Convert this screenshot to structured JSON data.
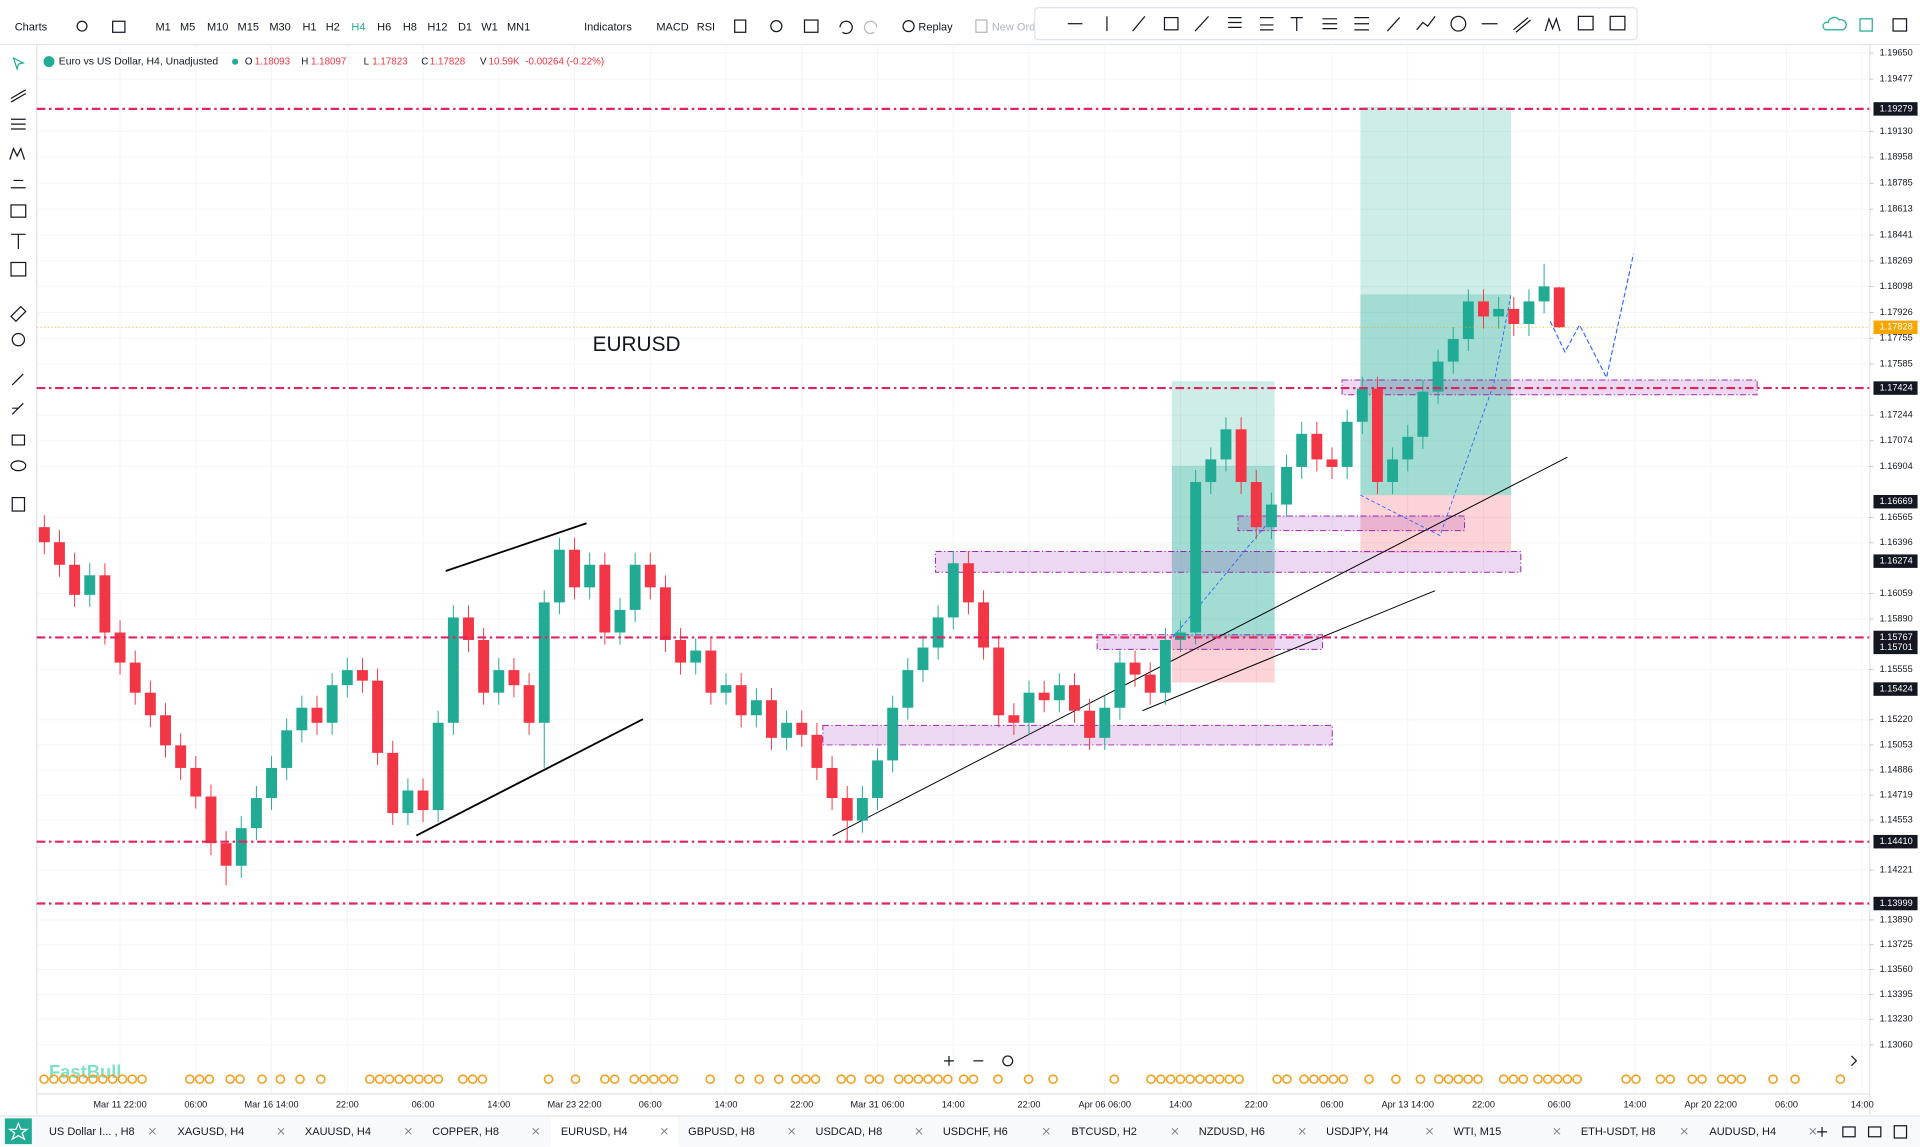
{
  "toolbar": {
    "chart_menu": "Charts",
    "timeframes": [
      "M1",
      "M5",
      "M10",
      "M15",
      "M30",
      "H1",
      "H2",
      "H4",
      "H6",
      "H8",
      "H12",
      "D1",
      "W1",
      "MN1"
    ],
    "indicators": "Indicators",
    "studies": [
      "MACD",
      "RSI"
    ],
    "replay": "Replay",
    "new_order": "New Ord"
  },
  "legend": {
    "name": "Euro vs US Dollar, H4, Unadjusted",
    "o": "O",
    "h": "H",
    "l": "L",
    "c": "C",
    "v": "V",
    "volume": "10.59K",
    "change": "-0.00264 (-0.22%)"
  },
  "watermark": "FastBull",
  "tabs": [
    "US Dollar I... , H8",
    "XAGUSD, H4",
    "XAUUSD, H4",
    "COPPER, H8",
    "EURUSD, H4",
    "GBPUSD, H8",
    "USDCAD, H8",
    "USDCHF, H6",
    "BTCUSD, H2",
    "NZDUSD, H6",
    "USDJPY, H4",
    "WTI, M15",
    "ETH-USDT, H8",
    "AUDUSD, H4"
  ],
  "chart_data": {
    "type": "candlestick",
    "annotation": "EURUSD",
    "up_color": "#22ab94",
    "down_color": "#f23645",
    "level_color": "#e0245e",
    "grid": true,
    "categories": [
      null,
      null,
      null,
      null,
      null,
      "Mar 11 22:00",
      null,
      null,
      null,
      null,
      "06:00",
      null,
      null,
      null,
      null,
      "Mar 16 14:00",
      null,
      null,
      null,
      null,
      "22:00",
      null,
      null,
      null,
      null,
      "06:00",
      null,
      null,
      null,
      null,
      "14:00",
      null,
      null,
      null,
      null,
      "Mar 23 22:00",
      null,
      null,
      null,
      null,
      "06:00",
      null,
      null,
      null,
      null,
      "14:00",
      null,
      null,
      null,
      null,
      "22:00",
      null,
      null,
      null,
      null,
      "Mar 31 06:00",
      null,
      null,
      null,
      null,
      "14:00",
      null,
      null,
      null,
      null,
      "22:00",
      null,
      null,
      null,
      null,
      "Apr 06 06:00",
      null,
      null,
      null,
      null,
      "14:00",
      null,
      null,
      null,
      null,
      "22:00",
      null,
      null,
      null,
      null,
      "06:00",
      null,
      null,
      null,
      null,
      "Apr 13 14:00",
      null,
      null,
      null,
      null,
      "22:00",
      null,
      null,
      null,
      null,
      "06:00",
      null,
      null,
      null,
      null,
      "14:00",
      null,
      null,
      null,
      null,
      "Apr 20 22:00",
      null,
      null,
      null,
      null,
      "06:00",
      null,
      null,
      null,
      null,
      "14:00"
    ],
    "open": [
      1.165,
      1.164,
      1.1625,
      1.1605,
      1.1618,
      1.158,
      1.156,
      1.154,
      1.1525,
      1.1505,
      1.149,
      1.1471,
      1.144,
      1.1425,
      1.145,
      1.147,
      1.149,
      1.1515,
      1.153,
      1.152,
      1.1545,
      1.1555,
      1.1548,
      1.15,
      1.146,
      1.1475,
      1.1462,
      1.152,
      1.159,
      1.1575,
      1.154,
      1.1555,
      1.1545,
      1.152,
      1.16,
      1.1635,
      1.161,
      1.1625,
      1.158,
      1.1595,
      1.1625,
      1.161,
      1.1575,
      1.156,
      1.1568,
      1.154,
      1.1545,
      1.1525,
      1.1535,
      1.151,
      1.152,
      1.1512,
      1.149,
      1.147,
      1.1455,
      1.147,
      1.1495,
      1.153,
      1.1555,
      1.157,
      1.159,
      1.1626,
      1.16,
      1.157,
      1.1525,
      1.152,
      1.154,
      1.1535,
      1.1545,
      1.1528,
      1.151,
      1.153,
      1.156,
      1.1552,
      1.154,
      1.1575,
      1.158,
      1.168,
      1.1695,
      1.1715,
      1.168,
      1.165,
      1.1665,
      1.169,
      1.1712,
      1.1695,
      1.169,
      1.172,
      1.1742,
      1.168,
      1.1695,
      1.171,
      1.174,
      1.176,
      1.1775,
      1.18,
      1.179,
      1.1795,
      1.1785,
      1.18,
      1.18093,
      null,
      null,
      null,
      null,
      null,
      null,
      null,
      null,
      null,
      null,
      null,
      null,
      null,
      null,
      null,
      null,
      null,
      null,
      null,
      null
    ],
    "high": [
      1.1658,
      1.1648,
      1.1633,
      1.1626,
      1.1626,
      1.1588,
      1.1568,
      1.1548,
      1.1533,
      1.1513,
      1.1498,
      1.1479,
      1.1448,
      1.1458,
      1.1478,
      1.1498,
      1.1523,
      1.1538,
      1.1538,
      1.1553,
      1.1563,
      1.1563,
      1.1556,
      1.1508,
      1.1483,
      1.1483,
      1.1528,
      1.1598,
      1.1598,
      1.1583,
      1.1563,
      1.1563,
      1.1553,
      1.1608,
      1.1643,
      1.1643,
      1.1633,
      1.1633,
      1.1603,
      1.1633,
      1.1633,
      1.1618,
      1.1583,
      1.1576,
      1.1576,
      1.1553,
      1.1553,
      1.1543,
      1.1543,
      1.1528,
      1.1528,
      1.152,
      1.1498,
      1.1478,
      1.1478,
      1.1503,
      1.1538,
      1.1563,
      1.1578,
      1.1598,
      1.1634,
      1.1634,
      1.1608,
      1.1578,
      1.1533,
      1.1548,
      1.1548,
      1.1553,
      1.1553,
      1.1536,
      1.1538,
      1.1568,
      1.1568,
      1.156,
      1.1583,
      1.1588,
      1.1688,
      1.1703,
      1.1723,
      1.1723,
      1.1688,
      1.1673,
      1.1698,
      1.172,
      1.172,
      1.1703,
      1.1728,
      1.175,
      1.175,
      1.1703,
      1.1718,
      1.1748,
      1.1768,
      1.1783,
      1.1808,
      1.1808,
      1.1803,
      1.1803,
      1.1808,
      1.1825,
      1.18097,
      null,
      null,
      null,
      null,
      null,
      null,
      null,
      null,
      null,
      null,
      null,
      null,
      null,
      null,
      null,
      null,
      null,
      null,
      null,
      null
    ],
    "low": [
      1.1632,
      1.1617,
      1.1597,
      1.1597,
      1.1572,
      1.1552,
      1.1532,
      1.1517,
      1.1497,
      1.1482,
      1.1463,
      1.1432,
      1.1412,
      1.1417,
      1.1442,
      1.1462,
      1.1482,
      1.1507,
      1.1512,
      1.1512,
      1.1537,
      1.154,
      1.1492,
      1.1452,
      1.1452,
      1.1454,
      1.1454,
      1.1512,
      1.1567,
      1.1532,
      1.1532,
      1.1537,
      1.1512,
      1.149,
      1.1592,
      1.1602,
      1.1602,
      1.1572,
      1.1572,
      1.1587,
      1.1602,
      1.1567,
      1.1552,
      1.1552,
      1.1532,
      1.1532,
      1.1517,
      1.1517,
      1.1502,
      1.1502,
      1.1504,
      1.1482,
      1.1462,
      1.1441,
      1.1447,
      1.1462,
      1.1487,
      1.1522,
      1.1547,
      1.1562,
      1.1582,
      1.1592,
      1.1562,
      1.1517,
      1.1512,
      1.1512,
      1.1527,
      1.1527,
      1.152,
      1.1502,
      1.1502,
      1.1522,
      1.1544,
      1.1532,
      1.1532,
      1.1567,
      1.1572,
      1.1672,
      1.1687,
      1.1672,
      1.1642,
      1.1642,
      1.1657,
      1.1682,
      1.1687,
      1.1682,
      1.1682,
      1.1712,
      1.1672,
      1.1672,
      1.1687,
      1.1702,
      1.1732,
      1.1752,
      1.1767,
      1.1782,
      1.1782,
      1.1777,
      1.1777,
      1.1792,
      1.17823,
      null,
      null,
      null,
      null,
      null,
      null,
      null,
      null,
      null,
      null,
      null,
      null,
      null,
      null,
      null,
      null,
      null,
      null,
      null,
      null
    ],
    "close": [
      1.164,
      1.1625,
      1.1605,
      1.1618,
      1.158,
      1.156,
      1.154,
      1.1525,
      1.1505,
      1.149,
      1.1471,
      1.144,
      1.1425,
      1.145,
      1.147,
      1.149,
      1.1515,
      1.153,
      1.152,
      1.1545,
      1.1555,
      1.1548,
      1.15,
      1.146,
      1.1475,
      1.1462,
      1.152,
      1.159,
      1.1575,
      1.154,
      1.1555,
      1.1545,
      1.152,
      1.16,
      1.1635,
      1.161,
      1.1625,
      1.158,
      1.1595,
      1.1625,
      1.161,
      1.1575,
      1.156,
      1.1568,
      1.154,
      1.1545,
      1.1525,
      1.1535,
      1.151,
      1.152,
      1.1512,
      1.149,
      1.147,
      1.1455,
      1.147,
      1.1495,
      1.153,
      1.1555,
      1.157,
      1.159,
      1.1626,
      1.16,
      1.157,
      1.1525,
      1.152,
      1.154,
      1.1535,
      1.1545,
      1.1528,
      1.151,
      1.153,
      1.156,
      1.1552,
      1.154,
      1.1575,
      1.158,
      1.168,
      1.1695,
      1.1715,
      1.168,
      1.165,
      1.1665,
      1.169,
      1.1712,
      1.1695,
      1.169,
      1.172,
      1.1742,
      1.168,
      1.1695,
      1.171,
      1.174,
      1.176,
      1.1775,
      1.18,
      1.179,
      1.1795,
      1.1785,
      1.18,
      1.181,
      1.17828,
      null,
      null,
      null,
      null,
      null,
      null,
      null,
      null,
      null,
      null,
      null,
      null,
      null,
      null,
      null,
      null,
      null,
      null,
      null,
      null
    ],
    "ylim": [
      1.12734,
      1.19715
    ],
    "yticks": [
      {
        "value": 1.1965,
        "label": "1.19650"
      },
      {
        "value": 1.19477,
        "label": "1.19477"
      },
      {
        "value": 1.1913,
        "label": "1.19130"
      },
      {
        "value": 1.18958,
        "label": "1.18958"
      },
      {
        "value": 1.18785,
        "label": "1.18785"
      },
      {
        "value": 1.18613,
        "label": "1.18613"
      },
      {
        "value": 1.18441,
        "label": "1.18441"
      },
      {
        "value": 1.18269,
        "label": "1.18269"
      },
      {
        "value": 1.18098,
        "label": "1.18098"
      },
      {
        "value": 1.17926,
        "label": "1.17926"
      },
      {
        "value": 1.17755,
        "label": "1.17755"
      },
      {
        "value": 1.17585,
        "label": "1.17585"
      },
      {
        "value": 1.17244,
        "label": "1.17244"
      },
      {
        "value": 1.17074,
        "label": "1.17074"
      },
      {
        "value": 1.16904,
        "label": "1.16904"
      },
      {
        "value": 1.16565,
        "label": "1.16565"
      },
      {
        "value": 1.16396,
        "label": "1.16396"
      },
      {
        "value": 1.16059,
        "label": "1.16059"
      },
      {
        "value": 1.1589,
        "label": "1.15890"
      },
      {
        "value": 1.15555,
        "label": "1.15555"
      },
      {
        "value": 1.1522,
        "label": "1.15220"
      },
      {
        "value": 1.15053,
        "label": "1.15053"
      },
      {
        "value": 1.14886,
        "label": "1.14886"
      },
      {
        "value": 1.14719,
        "label": "1.14719"
      },
      {
        "value": 1.14553,
        "label": "1.14553"
      },
      {
        "value": 1.14221,
        "label": "1.14221"
      },
      {
        "value": 1.1389,
        "label": "1.13890"
      },
      {
        "value": 1.13725,
        "label": "1.13725"
      },
      {
        "value": 1.1356,
        "label": "1.13560"
      },
      {
        "value": 1.13395,
        "label": "1.13395"
      },
      {
        "value": 1.1323,
        "label": "1.13230"
      },
      {
        "value": 1.1306,
        "label": "1.13060"
      }
    ],
    "levels": [
      {
        "value": 1.19279,
        "label": "1.19279"
      },
      {
        "value": 1.17424,
        "label": "1.17424"
      },
      {
        "value": 1.15767,
        "label": "1.15767"
      },
      {
        "value": 1.1441,
        "label": "1.14410"
      },
      {
        "value": 1.13999,
        "label": "1.13999"
      }
    ],
    "price_markers": [
      {
        "value": 1.16669,
        "label": "1.16669"
      },
      {
        "value": 1.16274,
        "label": "1.16274"
      },
      {
        "value": 1.15701,
        "label": "1.15701"
      },
      {
        "value": 1.15424,
        "label": "1.15424"
      }
    ]
  }
}
